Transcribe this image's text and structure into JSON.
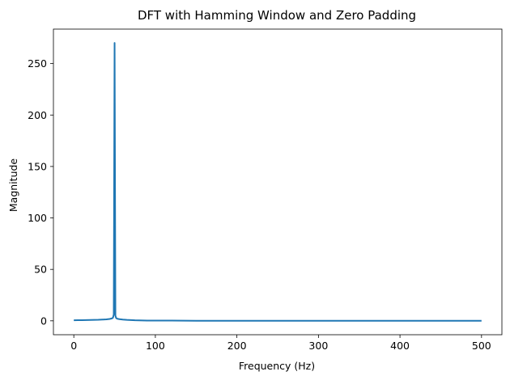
{
  "chart_data": {
    "type": "line",
    "title": "DFT with Hamming Window and Zero Padding",
    "xlabel": "Frequency (Hz)",
    "ylabel": "Magnitude",
    "xlim": [
      -25,
      525
    ],
    "ylim": [
      -13.5,
      283.5
    ],
    "xticks": [
      0,
      100,
      200,
      300,
      400,
      500
    ],
    "yticks": [
      0,
      50,
      100,
      150,
      200,
      250
    ],
    "grid": false,
    "legend": "none",
    "series": [
      {
        "color": "#1f77b4",
        "x": [
          0,
          5,
          10,
          15,
          20,
          25,
          30,
          35,
          40,
          44,
          46,
          47,
          48,
          49,
          50,
          51,
          52,
          53,
          54,
          56,
          58,
          60,
          65,
          70,
          75,
          80,
          90,
          100,
          120,
          150,
          200,
          250,
          300,
          350,
          400,
          450,
          500
        ],
        "y": [
          0.5,
          0.6,
          0.6,
          0.7,
          0.8,
          0.9,
          1.0,
          1.2,
          1.4,
          1.8,
          2.2,
          2.5,
          3.0,
          6.0,
          270.0,
          5.0,
          2.6,
          2.2,
          1.9,
          1.6,
          1.4,
          1.2,
          0.9,
          0.7,
          0.5,
          0.4,
          0.3,
          0.2,
          0.2,
          0.1,
          0.1,
          0.1,
          0.05,
          0.05,
          0.05,
          0.05,
          0.05
        ]
      }
    ]
  }
}
